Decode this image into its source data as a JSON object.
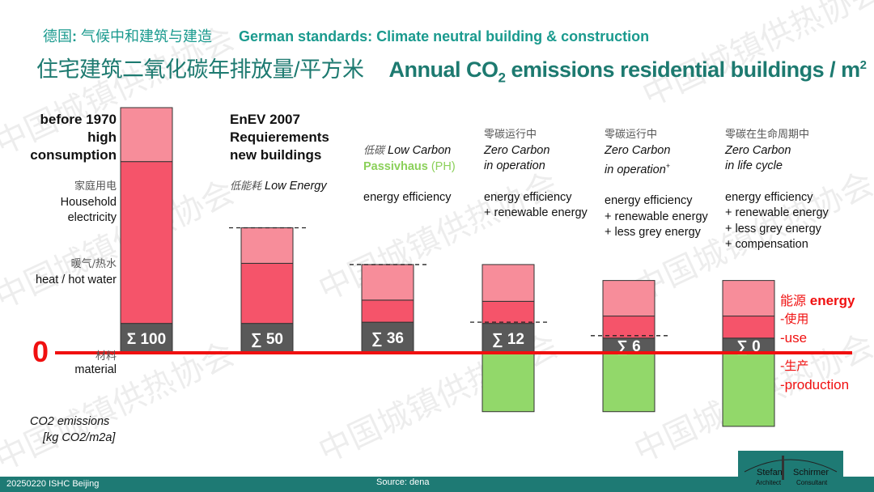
{
  "header": {
    "subtitle_cn_a": "德国",
    "subtitle_cn_colon": ":",
    "subtitle_cn_b": " 气候中和建筑与建造",
    "subtitle_en": "German standards: Climate neutral building & construction",
    "title_cn": "住宅建筑二氧化碳年排放量/平方米",
    "title_en_a": "Annual CO",
    "title_en_sub": "2",
    "title_en_b": " emissions residential buildings / m",
    "title_en_sup": "2"
  },
  "legend_left": {
    "household_cn": "家庭用电",
    "household_en_1": "Household",
    "household_en_2": "electricity",
    "heat_cn": "暖气/热水",
    "heat_en": "heat / hot water",
    "zero": "0",
    "material_cn": "材料",
    "material_en": "material",
    "unit_1": "CO2 emissions",
    "unit_2": "[kg CO2/m2a]"
  },
  "legend_right": {
    "energy_cn": "能源",
    "energy_en": " energy",
    "use_cn": "-使用",
    "use_en": "-use",
    "production_cn": "-生产",
    "production_en": "-production"
  },
  "columns": [
    {
      "h1": "before 1970",
      "h2": "high",
      "h3": "consumption"
    },
    {
      "h1": "EnEV 2007",
      "h2": "Requierements",
      "h3": "new buildings",
      "type_cn": "低能耗",
      "type_en": " Low Energy"
    },
    {
      "type_cn": "低碳",
      "type_en": "  Low Carbon",
      "std_a": "Passivhaus",
      "std_b": " (PH)",
      "m1": "energy efficiency"
    },
    {
      "cn": "零碳运行中",
      "l1": "Zero Carbon",
      "l2": "in operation",
      "m1": "energy efficiency",
      "m2": "+ renewable energy"
    },
    {
      "cn": "零碳运行中",
      "l1": "Zero Carbon",
      "l2": "in operation",
      "l2_sup": "+",
      "m1": "energy efficiency",
      "m2": "+ renewable energy",
      "m3": "+ less grey energy"
    },
    {
      "cn": "零碳在生命周期中",
      "l1": "Zero Carbon",
      "l2": "in life cycle",
      "m1": "energy efficiency",
      "m2": "+ renewable energy",
      "m3": "+ less grey energy",
      "m4": "+ compensation"
    }
  ],
  "chart_data": {
    "type": "bar",
    "stacked": true,
    "categories": [
      "before 1970",
      "EnEV 2007",
      "Passivhaus",
      "Zero Carbon in operation",
      "Zero Carbon in operation+",
      "Zero Carbon in life cycle"
    ],
    "ylabel": "CO2 emissions [kg CO2/m2a]",
    "ylim": [
      -32,
      100
    ],
    "series": [
      {
        "name": "material",
        "color": "#595959",
        "values": [
          12,
          12,
          12.5,
          12,
          6,
          6
        ]
      },
      {
        "name": "heat / hot water",
        "color": "#f5546a",
        "values": [
          66,
          24.5,
          9,
          9,
          9,
          9
        ]
      },
      {
        "name": "household electricity",
        "color": "#f78d9a",
        "values": [
          22,
          14.5,
          14.5,
          15,
          14.5,
          14.5
        ]
      },
      {
        "name": "energy production",
        "color": "#92d86a",
        "values": [
          0,
          0,
          0,
          -24,
          -24,
          -30
        ]
      }
    ],
    "sum_labels": [
      "Σ 100",
      "∑ 50",
      "∑ 36",
      "∑ 12",
      "∑ 6",
      "∑ 0"
    ],
    "sum_lines": [
      null,
      51,
      36,
      12.5,
      7,
      null
    ],
    "zero_line_color": "#f01010"
  },
  "footer": {
    "left": "20250220 ISHC Beijing",
    "center": "Source: dena",
    "logo_a": "Stefan",
    "logo_b": "Schirmer",
    "logo_c": "Architect",
    "logo_d": "Consultant"
  },
  "watermark": "中国城镇供热协会"
}
